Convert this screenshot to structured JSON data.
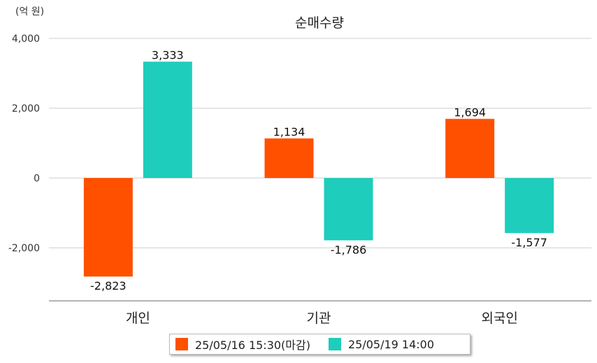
{
  "unit_label": "(억 원)",
  "colors": {
    "series1": "#ff5000",
    "series2": "#1ecdbc",
    "grid": "#cccccc",
    "axis": "#888888"
  },
  "chart_data": {
    "type": "bar",
    "title": "순매수량",
    "xlabel": "",
    "ylabel": "",
    "ylim": [
      -3500,
      4000
    ],
    "yticks": [
      4000,
      2000,
      0,
      -2000
    ],
    "ytick_labels": [
      "4,000",
      "2,000",
      "0",
      "-2,000"
    ],
    "categories": [
      "개인",
      "기관",
      "외국인"
    ],
    "grid": true,
    "legend_position": "bottom-center",
    "series": [
      {
        "name": "25/05/16 15:30(마감)",
        "color": "#ff5000",
        "values": [
          -2823,
          1134,
          1694
        ],
        "labels": [
          "-2,823",
          "1,134",
          "1,694"
        ]
      },
      {
        "name": "25/05/19 14:00",
        "color": "#1ecdbc",
        "values": [
          3333,
          -1786,
          -1577
        ],
        "labels": [
          "3,333",
          "-1,786",
          "-1,577"
        ]
      }
    ]
  }
}
